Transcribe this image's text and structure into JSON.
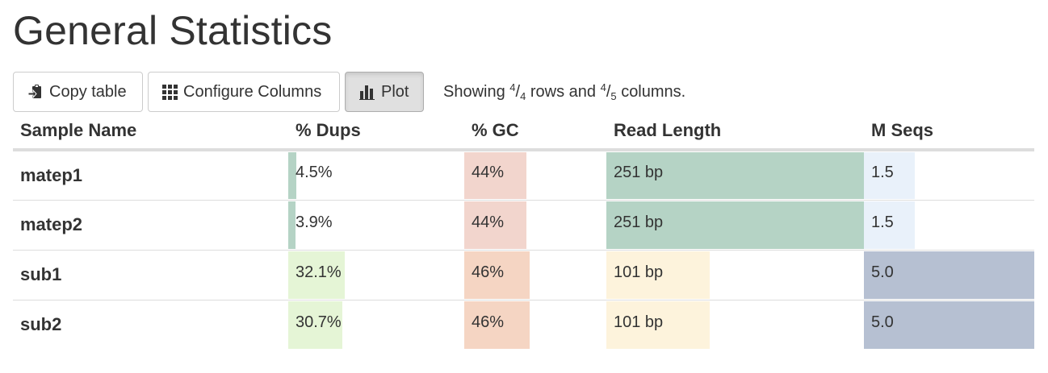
{
  "page": {
    "title": "General Statistics"
  },
  "toolbar": {
    "copy_label": "Copy table",
    "configure_label": "Configure Columns",
    "plot_label": "Plot",
    "showing_prefix": "Showing",
    "rows_shown": "4",
    "rows_total": "4",
    "rows_word": "rows and",
    "cols_shown": "4",
    "cols_total": "5",
    "cols_word": "columns."
  },
  "table": {
    "headers": {
      "sample": "Sample Name",
      "dups": "% Dups",
      "gc": "% GC",
      "readlen": "Read Length",
      "mseqs": "M Seqs"
    },
    "rows": [
      {
        "sample": "matep1",
        "dups": {
          "text": "4.5%",
          "value": 4.5,
          "color": "#b5d3c5"
        },
        "gc": {
          "text": "44%",
          "value": 44,
          "color": "#f2d5cd"
        },
        "readlen": {
          "text": "251 bp",
          "value": 251,
          "color": "#b5d3c5"
        },
        "mseqs": {
          "text": "1.5",
          "value": 1.5,
          "color": "#e9f1fa"
        }
      },
      {
        "sample": "matep2",
        "dups": {
          "text": "3.9%",
          "value": 3.9,
          "color": "#b5d3c5"
        },
        "gc": {
          "text": "44%",
          "value": 44,
          "color": "#f2d5cd"
        },
        "readlen": {
          "text": "251 bp",
          "value": 251,
          "color": "#b5d3c5"
        },
        "mseqs": {
          "text": "1.5",
          "value": 1.5,
          "color": "#e9f1fa"
        }
      },
      {
        "sample": "sub1",
        "dups": {
          "text": "32.1%",
          "value": 32.1,
          "color": "#e5f5d6"
        },
        "gc": {
          "text": "46%",
          "value": 46,
          "color": "#f5d5c3"
        },
        "readlen": {
          "text": "101 bp",
          "value": 101,
          "color": "#fdf3dc"
        },
        "mseqs": {
          "text": "5.0",
          "value": 5.0,
          "color": "#b6c0d2"
        }
      },
      {
        "sample": "sub2",
        "dups": {
          "text": "30.7%",
          "value": 30.7,
          "color": "#e5f5d6"
        },
        "gc": {
          "text": "46%",
          "value": 46,
          "color": "#f5d5c3"
        },
        "readlen": {
          "text": "101 bp",
          "value": 101,
          "color": "#fdf3dc"
        },
        "mseqs": {
          "text": "5.0",
          "value": 5.0,
          "color": "#b6c0d2"
        }
      }
    ]
  },
  "column_scale": {
    "dups": {
      "min": 0,
      "max": 100
    },
    "gc": {
      "min": 0,
      "max": 100
    },
    "readlen": {
      "min": 0,
      "max": 251
    },
    "mseqs": {
      "min": 0,
      "max": 5.0
    }
  },
  "icons": {
    "copy": "clipboard-icon",
    "configure": "grid-icon",
    "plot": "bar-chart-icon"
  }
}
